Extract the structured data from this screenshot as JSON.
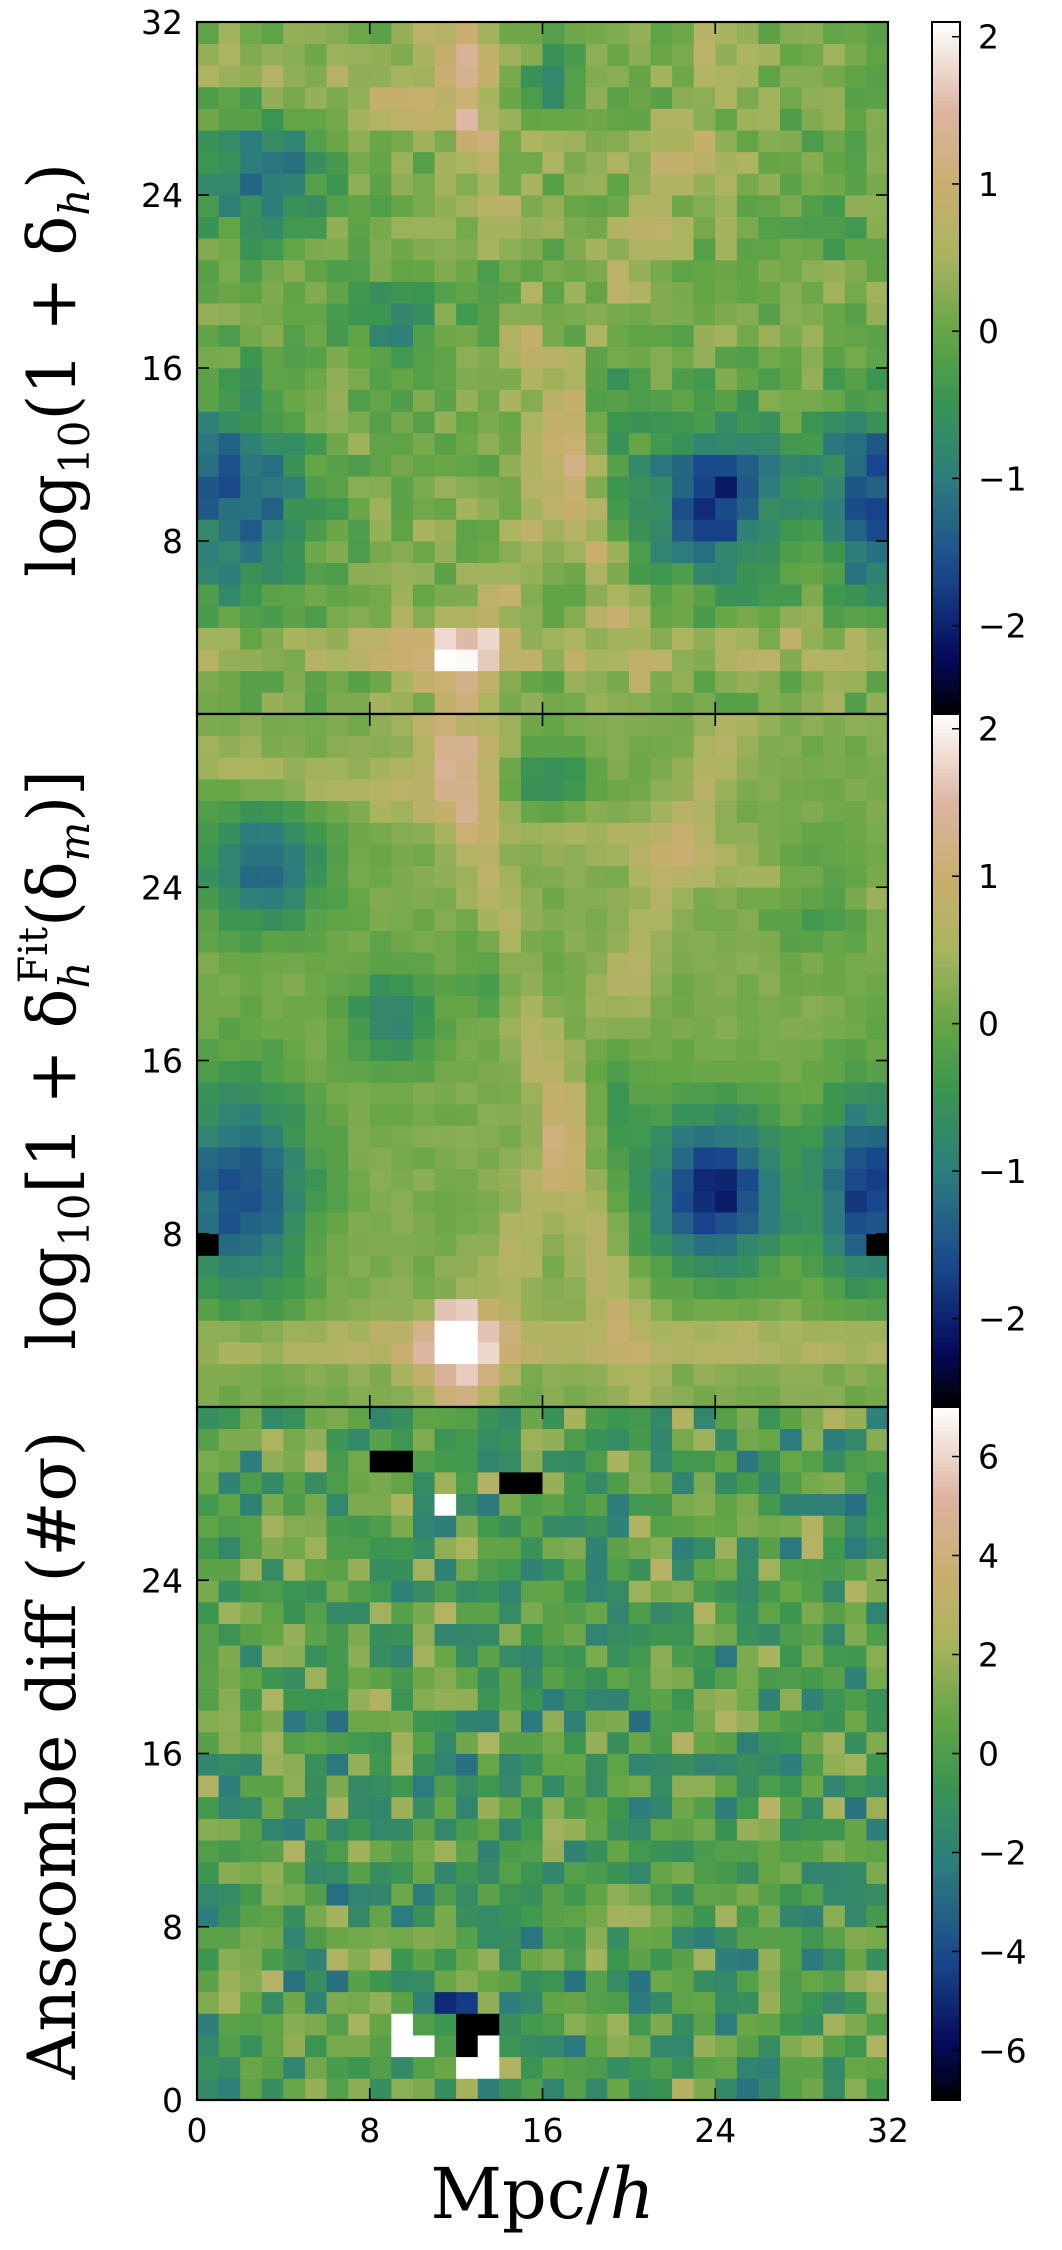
{
  "chart_data": [
    {
      "type": "heatmap",
      "panel": "top",
      "title": "",
      "ylabel": "log10(1 + δh)",
      "xlabel": "",
      "grid_size": [
        32,
        32
      ],
      "x_range": [
        0,
        32
      ],
      "y_range": [
        0,
        32
      ],
      "yticks": [
        "8",
        "16",
        "24",
        "32"
      ],
      "xticks": [],
      "colorbar": {
        "range": [
          -2.6,
          2.1
        ],
        "ticks": [
          "2",
          "1",
          "0",
          "−1",
          "−2"
        ],
        "tick_values": [
          2,
          1,
          0,
          -1,
          -2
        ],
        "colormap": "gist_earth"
      },
      "description": "halo overdensity field slice",
      "extremes": [
        {
          "x": 12,
          "y": 2.5,
          "value": 1.6
        },
        {
          "x": 24,
          "y": 10,
          "value": -2.2
        },
        {
          "x": 2,
          "y": 10,
          "value": -2.0
        }
      ]
    },
    {
      "type": "heatmap",
      "panel": "middle",
      "title": "",
      "ylabel": "log10[1 + δh^Fit(δm)]",
      "xlabel": "",
      "grid_size": [
        32,
        32
      ],
      "x_range": [
        0,
        32
      ],
      "y_range": [
        0,
        32
      ],
      "yticks": [
        "8",
        "16",
        "24"
      ],
      "xticks": [],
      "colorbar": {
        "range": [
          -2.6,
          2.1
        ],
        "ticks": [
          "2",
          "1",
          "0",
          "−1",
          "−2"
        ],
        "tick_values": [
          2,
          1,
          0,
          -1,
          -2
        ],
        "colormap": "gist_earth"
      },
      "extremes": [
        {
          "x": 12,
          "y": 3.5,
          "value": 2.1
        },
        {
          "x": 0.5,
          "y": 7.5,
          "value": -3.0
        },
        {
          "x": 31.5,
          "y": 7.5,
          "value": -2.8
        }
      ]
    },
    {
      "type": "heatmap",
      "panel": "bottom",
      "title": "",
      "ylabel": "Anscombe diff (#σ)",
      "xlabel": "Mpc/h",
      "grid_size": [
        32,
        32
      ],
      "x_range": [
        0,
        32
      ],
      "y_range": [
        0,
        32
      ],
      "yticks": [
        "0",
        "8",
        "16",
        "24"
      ],
      "xticks": [
        "0",
        "8",
        "16",
        "24",
        "32"
      ],
      "colorbar": {
        "range": [
          -7,
          7
        ],
        "ticks": [
          "6",
          "4",
          "2",
          "0",
          "−2",
          "−4",
          "−6"
        ],
        "tick_values": [
          6,
          4,
          2,
          0,
          -2,
          -4,
          -6
        ],
        "colormap": "gist_earth"
      },
      "extremes": [
        {
          "x": 11.5,
          "y": 3.5,
          "value": 7.5
        },
        {
          "x": 12.5,
          "y": 3.5,
          "value": -8
        },
        {
          "x": 9,
          "y": 29.5,
          "value": -8
        },
        {
          "x": 14,
          "y": 29,
          "value": -8
        }
      ]
    }
  ]
}
